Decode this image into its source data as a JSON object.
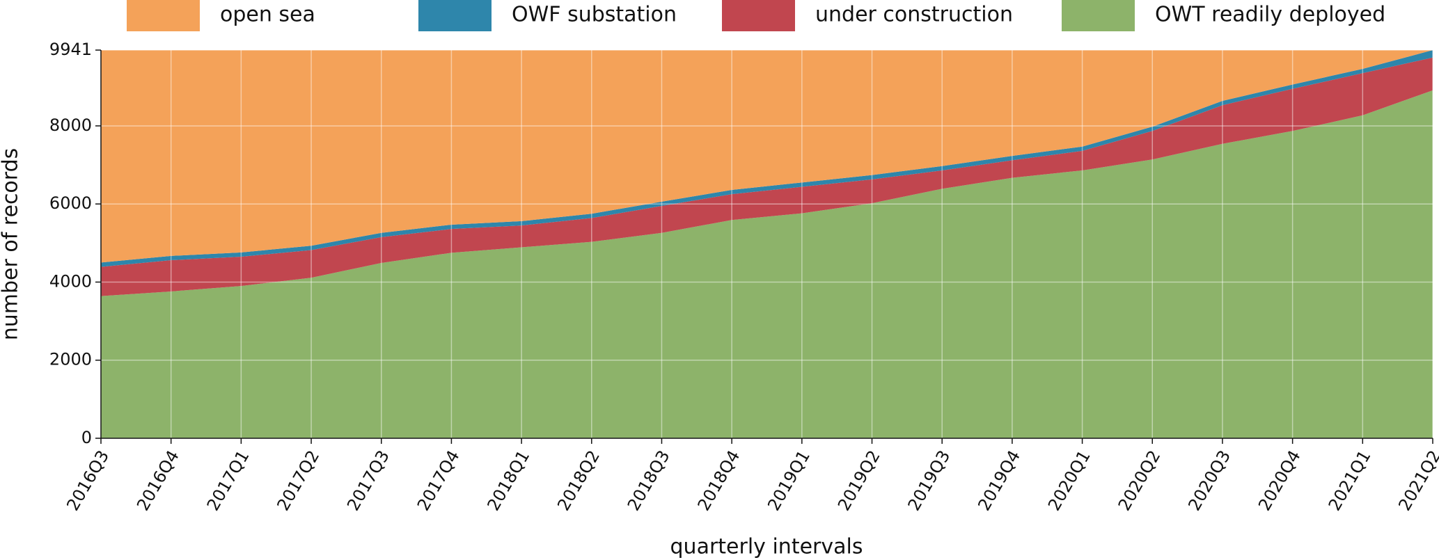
{
  "chart_data": {
    "type": "stacked_area",
    "x_label": "quarterly intervals",
    "y_label": "number of records",
    "categories": [
      "2016Q3",
      "2016Q4",
      "2017Q1",
      "2017Q2",
      "2017Q3",
      "2017Q4",
      "2018Q1",
      "2018Q2",
      "2018Q3",
      "2018Q4",
      "2019Q1",
      "2019Q2",
      "2019Q3",
      "2019Q4",
      "2020Q1",
      "2020Q2",
      "2020Q3",
      "2020Q4",
      "2021Q1",
      "2021Q2"
    ],
    "series": [
      {
        "name": "open sea",
        "color": "#f4a259",
        "values": [
          5441,
          5271,
          5181,
          5011,
          4681,
          4471,
          4381,
          4191,
          3881,
          3581,
          3391,
          3201,
          2971,
          2711,
          2471,
          1961,
          1301,
          881,
          481,
          1
        ]
      },
      {
        "name": "OWF substation",
        "color": "#2e86ab",
        "values": [
          110,
          110,
          110,
          110,
          110,
          110,
          110,
          110,
          110,
          110,
          110,
          110,
          110,
          110,
          110,
          110,
          110,
          110,
          110,
          190
        ]
      },
      {
        "name": "under construction",
        "color": "#c1464f",
        "values": [
          750,
          800,
          750,
          710,
          660,
          610,
          560,
          610,
          690,
          660,
          680,
          610,
          470,
          450,
          500,
          730,
          990,
          1080,
          1080,
          840
        ]
      },
      {
        "name": "OWT readily deployed",
        "color": "#8db36a",
        "values": [
          3640,
          3760,
          3900,
          4110,
          4490,
          4750,
          4890,
          5030,
          5260,
          5590,
          5760,
          6020,
          6390,
          6670,
          6860,
          7140,
          7540,
          7870,
          8270,
          8910
        ]
      }
    ],
    "ylim": [
      0,
      9941
    ],
    "yticks": [
      0,
      2000,
      4000,
      6000,
      8000,
      9941
    ],
    "grid": true,
    "legend": "top"
  }
}
